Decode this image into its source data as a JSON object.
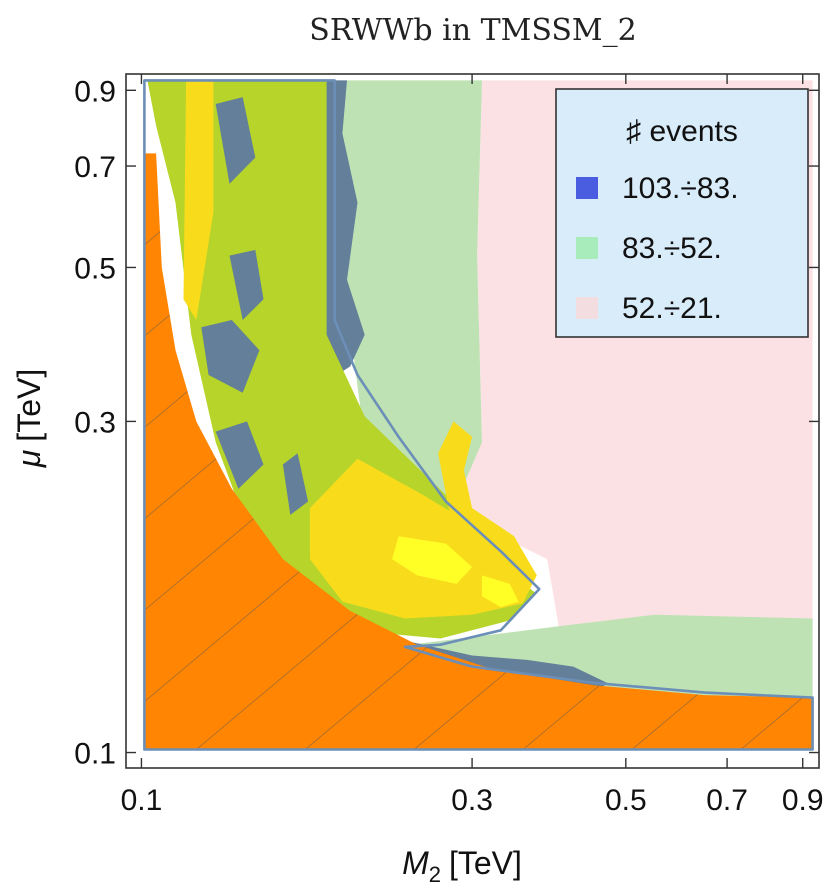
{
  "chart_data": {
    "type": "contour",
    "title": "SRWWb in TMSSM_2",
    "xlabel": {
      "symbol": "M",
      "sub": "2",
      "unit": "[TeV]"
    },
    "ylabel": {
      "symbol": "μ",
      "unit": "[TeV]"
    },
    "x_scale": "log",
    "y_scale": "log",
    "xlim": [
      0.095,
      0.95
    ],
    "ylim": [
      0.095,
      0.95
    ],
    "x_ticks": [
      {
        "value": 0.1,
        "label": "0.1"
      },
      {
        "value": 0.3,
        "label": "0.3"
      },
      {
        "value": 0.5,
        "label": "0.5"
      },
      {
        "value": 0.7,
        "label": "0.7"
      },
      {
        "value": 0.9,
        "label": "0.9"
      }
    ],
    "y_ticks": [
      {
        "value": 0.1,
        "label": "0.1"
      },
      {
        "value": 0.3,
        "label": "0.3"
      },
      {
        "value": 0.5,
        "label": "0.5"
      },
      {
        "value": 0.7,
        "label": "0.7"
      },
      {
        "value": 0.9,
        "label": "0.9"
      }
    ],
    "legend": {
      "title": "♯ events",
      "position": "top-right",
      "entries": [
        {
          "label": "103.÷83.",
          "color": "#4a5ce0"
        },
        {
          "label": "83.÷52.",
          "color": "#a8ecbc"
        },
        {
          "label": "52.÷21.",
          "color": "#f3dde0"
        }
      ]
    },
    "region_colors": {
      "pink": "#fbe1e3",
      "green": "#bfe2b4",
      "blue": "#637f9a",
      "lime": "#b6d42a",
      "yellow": "#f8dc1c",
      "bright_yellow": "#ffff26",
      "excluded": "#ff8503"
    },
    "regions": [
      {
        "name": "pink-band",
        "color": "pink",
        "points": [
          [
            0.31,
            0.93
          ],
          [
            0.93,
            0.93
          ],
          [
            0.93,
            0.152
          ],
          [
            0.4,
            0.152
          ],
          [
            0.385,
            0.19
          ],
          [
            0.33,
            0.205
          ],
          [
            0.3,
            0.215
          ],
          [
            0.29,
            0.25
          ],
          [
            0.31,
            0.28
          ],
          [
            0.305,
            0.52
          ],
          [
            0.31,
            0.93
          ]
        ]
      },
      {
        "name": "green-band-upper",
        "color": "green",
        "points": [
          [
            0.185,
            0.93
          ],
          [
            0.31,
            0.93
          ],
          [
            0.305,
            0.52
          ],
          [
            0.31,
            0.28
          ],
          [
            0.29,
            0.24
          ],
          [
            0.275,
            0.218
          ],
          [
            0.25,
            0.25
          ],
          [
            0.225,
            0.27
          ],
          [
            0.21,
            0.28
          ],
          [
            0.195,
            0.5
          ],
          [
            0.185,
            0.93
          ]
        ]
      },
      {
        "name": "green-band-lower",
        "color": "green",
        "points": [
          [
            0.23,
            0.142
          ],
          [
            0.4,
            0.152
          ],
          [
            0.55,
            0.158
          ],
          [
            0.93,
            0.156
          ],
          [
            0.93,
            0.118
          ],
          [
            0.65,
            0.12
          ],
          [
            0.45,
            0.125
          ],
          [
            0.3,
            0.131
          ],
          [
            0.23,
            0.142
          ]
        ]
      },
      {
        "name": "blue-edge-upper",
        "color": "blue",
        "points": [
          [
            0.17,
            0.93
          ],
          [
            0.198,
            0.93
          ],
          [
            0.195,
            0.78
          ],
          [
            0.205,
            0.62
          ],
          [
            0.198,
            0.48
          ],
          [
            0.21,
            0.4
          ],
          [
            0.2,
            0.36
          ],
          [
            0.183,
            0.34
          ],
          [
            0.17,
            0.93
          ]
        ]
      },
      {
        "name": "blue-edge-lower",
        "color": "blue",
        "points": [
          [
            0.195,
            0.15
          ],
          [
            0.24,
            0.145
          ],
          [
            0.3,
            0.138
          ],
          [
            0.36,
            0.136
          ],
          [
            0.42,
            0.133
          ],
          [
            0.47,
            0.126
          ],
          [
            0.45,
            0.121
          ],
          [
            0.36,
            0.124
          ],
          [
            0.3,
            0.128
          ],
          [
            0.24,
            0.134
          ],
          [
            0.2,
            0.14
          ],
          [
            0.195,
            0.15
          ]
        ]
      },
      {
        "name": "lime-core",
        "color": "lime",
        "points": [
          [
            0.102,
            0.93
          ],
          [
            0.185,
            0.93
          ],
          [
            0.185,
            0.4
          ],
          [
            0.21,
            0.305
          ],
          [
            0.275,
            0.235
          ],
          [
            0.32,
            0.19
          ],
          [
            0.37,
            0.17
          ],
          [
            0.34,
            0.155
          ],
          [
            0.27,
            0.146
          ],
          [
            0.2,
            0.15
          ],
          [
            0.17,
            0.162
          ],
          [
            0.145,
            0.2
          ],
          [
            0.128,
            0.28
          ],
          [
            0.118,
            0.4
          ],
          [
            0.112,
            0.62
          ],
          [
            0.105,
            0.8
          ],
          [
            0.102,
            0.93
          ]
        ]
      },
      {
        "name": "yellow-core",
        "color": "yellow",
        "points": [
          [
            0.205,
            0.265
          ],
          [
            0.255,
            0.235
          ],
          [
            0.278,
            0.223
          ],
          [
            0.268,
            0.27
          ],
          [
            0.282,
            0.3
          ],
          [
            0.3,
            0.285
          ],
          [
            0.292,
            0.255
          ],
          [
            0.3,
            0.225
          ],
          [
            0.345,
            0.205
          ],
          [
            0.372,
            0.18
          ],
          [
            0.355,
            0.164
          ],
          [
            0.3,
            0.158
          ],
          [
            0.24,
            0.156
          ],
          [
            0.195,
            0.165
          ],
          [
            0.175,
            0.19
          ],
          [
            0.175,
            0.225
          ],
          [
            0.205,
            0.265
          ]
        ]
      },
      {
        "name": "yellow-strip-left",
        "color": "yellow",
        "points": [
          [
            0.116,
            0.93
          ],
          [
            0.127,
            0.93
          ],
          [
            0.127,
            0.6
          ],
          [
            0.12,
            0.42
          ],
          [
            0.115,
            0.45
          ],
          [
            0.116,
            0.93
          ]
        ]
      },
      {
        "name": "bright-yellow-1",
        "color": "bright_yellow",
        "points": [
          [
            0.235,
            0.205
          ],
          [
            0.275,
            0.2
          ],
          [
            0.3,
            0.185
          ],
          [
            0.285,
            0.175
          ],
          [
            0.25,
            0.18
          ],
          [
            0.23,
            0.19
          ],
          [
            0.235,
            0.205
          ]
        ]
      },
      {
        "name": "bright-yellow-2",
        "color": "bright_yellow",
        "points": [
          [
            0.31,
            0.18
          ],
          [
            0.34,
            0.175
          ],
          [
            0.35,
            0.165
          ],
          [
            0.33,
            0.162
          ],
          [
            0.31,
            0.168
          ],
          [
            0.31,
            0.18
          ]
        ]
      },
      {
        "name": "dark-patch-1",
        "color": "blue",
        "points": [
          [
            0.128,
            0.86
          ],
          [
            0.14,
            0.88
          ],
          [
            0.146,
            0.72
          ],
          [
            0.134,
            0.66
          ],
          [
            0.128,
            0.86
          ]
        ]
      },
      {
        "name": "dark-patch-2",
        "color": "blue",
        "points": [
          [
            0.134,
            0.52
          ],
          [
            0.146,
            0.53
          ],
          [
            0.15,
            0.45
          ],
          [
            0.14,
            0.42
          ],
          [
            0.134,
            0.52
          ]
        ]
      },
      {
        "name": "dark-patch-3",
        "color": "blue",
        "points": [
          [
            0.122,
            0.41
          ],
          [
            0.135,
            0.42
          ],
          [
            0.148,
            0.38
          ],
          [
            0.14,
            0.33
          ],
          [
            0.125,
            0.35
          ],
          [
            0.122,
            0.41
          ]
        ]
      },
      {
        "name": "dark-patch-4",
        "color": "blue",
        "points": [
          [
            0.128,
            0.29
          ],
          [
            0.142,
            0.3
          ],
          [
            0.15,
            0.26
          ],
          [
            0.138,
            0.24
          ],
          [
            0.128,
            0.29
          ]
        ]
      },
      {
        "name": "dark-patch-5",
        "color": "blue",
        "points": [
          [
            0.16,
            0.26
          ],
          [
            0.168,
            0.27
          ],
          [
            0.174,
            0.23
          ],
          [
            0.164,
            0.22
          ],
          [
            0.16,
            0.26
          ]
        ]
      },
      {
        "name": "excluded-region",
        "color": "excluded",
        "hatched": true,
        "points": [
          [
            0.101,
            0.73
          ],
          [
            0.105,
            0.73
          ],
          [
            0.107,
            0.5
          ],
          [
            0.112,
            0.38
          ],
          [
            0.12,
            0.3
          ],
          [
            0.135,
            0.24
          ],
          [
            0.16,
            0.19
          ],
          [
            0.2,
            0.16
          ],
          [
            0.25,
            0.143
          ],
          [
            0.32,
            0.132
          ],
          [
            0.45,
            0.125
          ],
          [
            0.65,
            0.121
          ],
          [
            0.93,
            0.12
          ],
          [
            0.93,
            0.101
          ],
          [
            0.101,
            0.101
          ],
          [
            0.101,
            0.73
          ]
        ]
      }
    ],
    "outlines": [
      {
        "name": "hatched-region-outline",
        "points": [
          [
            0.101,
            0.93
          ],
          [
            0.19,
            0.93
          ],
          [
            0.19,
            0.42
          ],
          [
            0.205,
            0.35
          ],
          [
            0.235,
            0.285
          ],
          [
            0.275,
            0.23
          ],
          [
            0.33,
            0.195
          ],
          [
            0.375,
            0.172
          ],
          [
            0.33,
            0.15
          ],
          [
            0.27,
            0.143
          ],
          [
            0.24,
            0.142
          ],
          [
            0.3,
            0.133
          ],
          [
            0.45,
            0.126
          ],
          [
            0.65,
            0.122
          ],
          [
            0.93,
            0.12
          ],
          [
            0.93,
            0.101
          ],
          [
            0.101,
            0.101
          ],
          [
            0.101,
            0.93
          ]
        ]
      }
    ]
  }
}
